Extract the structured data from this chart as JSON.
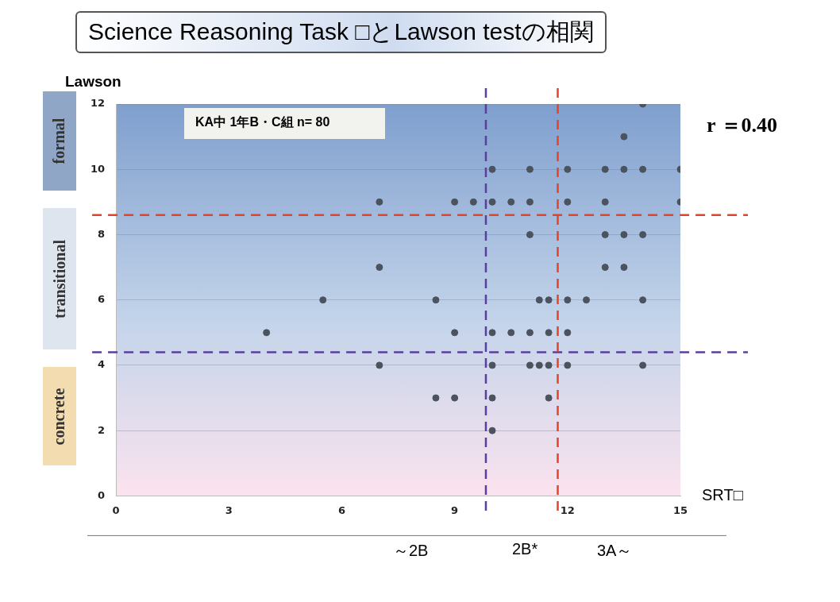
{
  "chart_data": {
    "type": "scatter",
    "title": "Science Reasoning Task □とLawson testの相関",
    "xlabel": "SRT□",
    "ylabel": "Lawson",
    "x": [
      4,
      5.5,
      7,
      7,
      7,
      8.5,
      8.5,
      9,
      9,
      9,
      9.5,
      10,
      10,
      10,
      10,
      10,
      10,
      10.5,
      10.5,
      11,
      11,
      11,
      11,
      11,
      11.25,
      11.25,
      11.5,
      11.5,
      11.5,
      11.5,
      12,
      12,
      12,
      12,
      12,
      12.5,
      13,
      13,
      13,
      13,
      13.5,
      13.5,
      13.5,
      13.5,
      14,
      14,
      14,
      14,
      14,
      15,
      15
    ],
    "values": [
      5,
      6,
      9,
      7,
      4,
      6,
      3,
      9,
      5,
      3,
      9,
      10,
      9,
      5,
      4,
      3,
      2,
      9,
      5,
      10,
      9,
      8,
      5,
      4,
      6,
      4,
      6,
      5,
      4,
      3,
      10,
      9,
      6,
      5,
      4,
      6,
      10,
      9,
      8,
      7,
      11,
      10,
      8,
      7,
      12,
      10,
      8,
      6,
      4,
      10,
      9
    ],
    "color": "#4a535e",
    "marker": "circle",
    "xlim": [
      0,
      15
    ],
    "xticks": [
      0,
      3,
      6,
      9,
      12,
      15
    ],
    "ylim": [
      0,
      12
    ],
    "yticks": [
      0,
      2,
      4,
      6,
      8,
      10,
      12
    ],
    "grid": "y",
    "legend": false,
    "ref_lines": [
      {
        "axis": "y",
        "value": 8.6,
        "color": "#e0452c",
        "line_style": "dashed"
      },
      {
        "axis": "y",
        "value": 4.4,
        "color": "#5b3f9e",
        "line_style": "dashed"
      },
      {
        "axis": "x",
        "value": 9.83,
        "color": "#5b3f9e",
        "line_style": "dashed"
      },
      {
        "axis": "x",
        "value": 11.74,
        "color": "#e0452c",
        "line_style": "dashed"
      }
    ],
    "annotations": [
      "KA中 1年B・C組 n= 80",
      "r ＝0.40",
      "formal",
      "transitional",
      "concrete",
      "～2B",
      "2B*",
      "3A～"
    ]
  }
}
